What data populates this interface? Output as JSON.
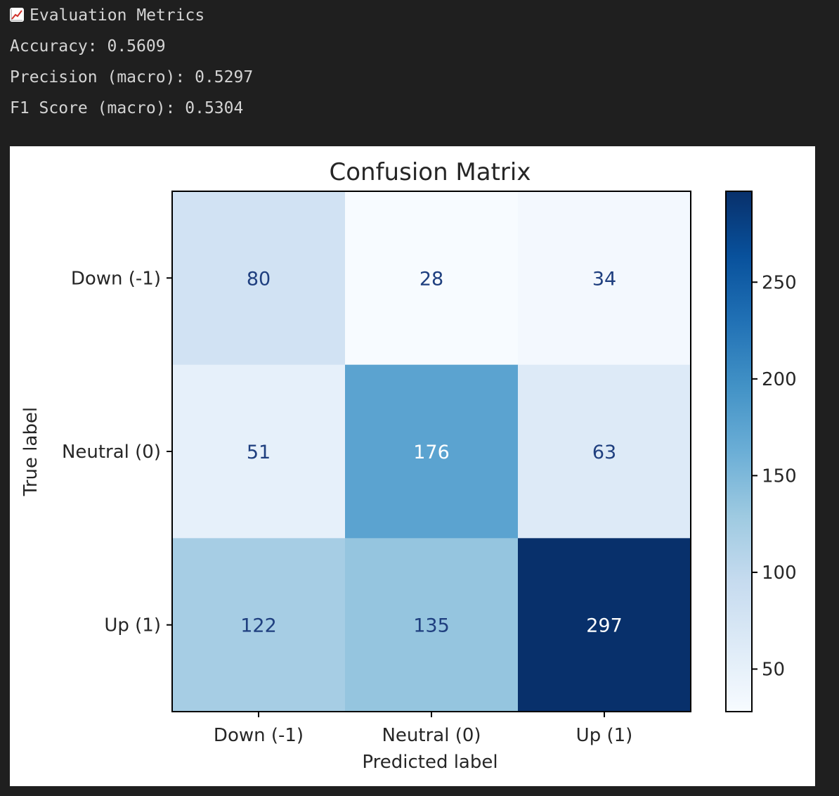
{
  "header": {
    "title": "Evaluation Metrics",
    "icon": "chart-increasing-icon"
  },
  "metrics": [
    {
      "text": "Accuracy: 0.5609"
    },
    {
      "text": "Precision (macro): 0.5297"
    },
    {
      "text": "F1 Score (macro): 0.5304"
    }
  ],
  "chart_data": {
    "type": "heatmap",
    "title": "Confusion Matrix",
    "xlabel": "Predicted label",
    "ylabel": "True label",
    "x_categories": [
      "Down (-1)",
      "Neutral (0)",
      "Up (1)"
    ],
    "y_categories": [
      "Down (-1)",
      "Neutral (0)",
      "Up (1)"
    ],
    "values": [
      [
        80,
        28,
        34
      ],
      [
        51,
        176,
        63
      ],
      [
        122,
        135,
        297
      ]
    ],
    "colormap": "Blues",
    "colorbar": {
      "range": [
        28,
        297
      ],
      "ticks": [
        50,
        100,
        150,
        200,
        250
      ]
    },
    "colors": {
      "text_light": "#ffffff",
      "text_dark": "#1f3f7f",
      "low": "#f7fbff",
      "high": "#08306b"
    }
  }
}
